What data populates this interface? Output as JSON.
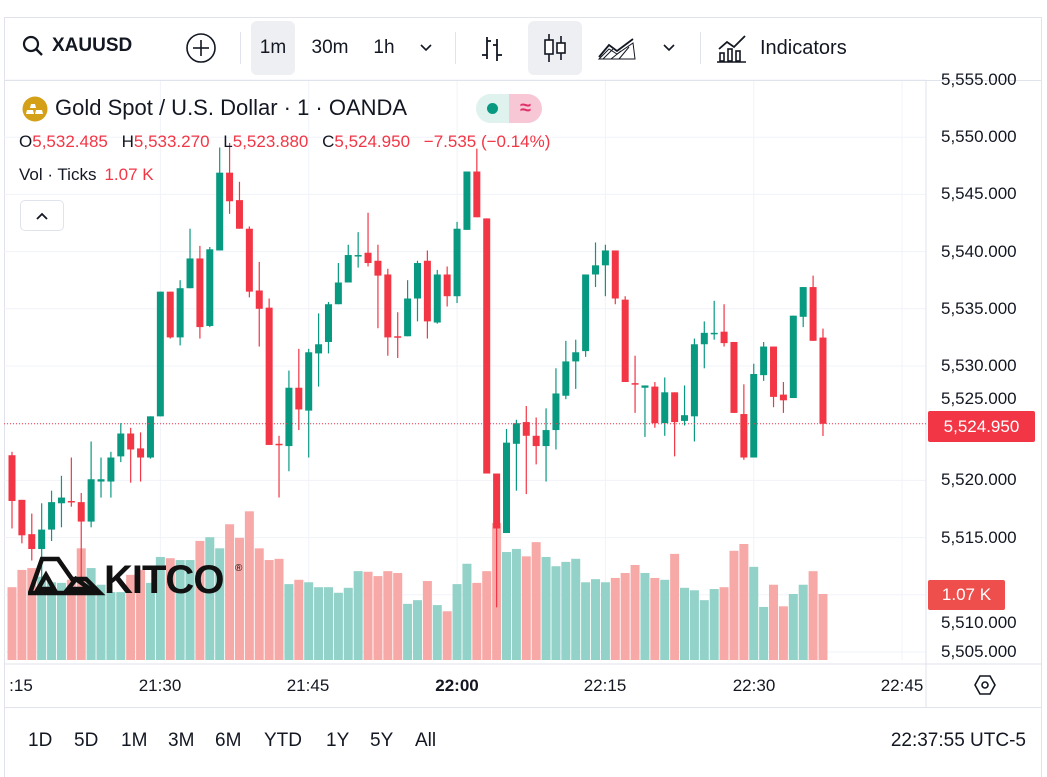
{
  "toolbar": {
    "symbol": "XAUUSD",
    "intervals": [
      "1m",
      "30m",
      "1h"
    ],
    "active_interval": "1m",
    "indicators_label": "Indicators"
  },
  "legend": {
    "title": "Gold Spot / U.S. Dollar · 1 · OANDA",
    "o_label": "O",
    "o": "5,532.485",
    "h_label": "H",
    "h": "5,533.270",
    "l_label": "L",
    "l": "5,523.880",
    "c_label": "C",
    "c": "5,524.950",
    "change": "−7.535 (−0.14%)",
    "vol_label": "Vol · Ticks",
    "vol": "1.07 K",
    "badge_icon": "≈"
  },
  "logo": "KITCO",
  "price_axis": {
    "ticks": [
      "5,555.000",
      "5,550.000",
      "5,545.000",
      "5,540.000",
      "5,535.000",
      "5,530.000",
      "5,525.000",
      "5,520.000",
      "5,515.000",
      "5,510.000",
      "5,505.000"
    ],
    "last_price": "5,524.950",
    "last_volume": "1.07 K"
  },
  "time_axis": {
    "ticks": [
      ":15",
      "21:30",
      "21:45",
      "22:00",
      "22:15",
      "22:30",
      "22:45"
    ]
  },
  "bottom_bar": {
    "ranges": [
      "1D",
      "5D",
      "1M",
      "3M",
      "6M",
      "YTD",
      "1Y",
      "5Y",
      "All"
    ],
    "clock": "22:37:55 UTC-5"
  },
  "colors": {
    "up": "#089981",
    "down": "#f23645",
    "up_volume": "#92d2c8",
    "down_volume": "#f7a9a7",
    "last_price_line": "#f23645",
    "gold_icon": "#d4a017"
  },
  "chart_data": {
    "type": "candlestick",
    "symbol": "XAUUSD",
    "interval": "1m",
    "start_time": "21:15",
    "columns": [
      "open",
      "high",
      "low",
      "close",
      "volume_k"
    ],
    "ylim": [
      5505,
      5555
    ],
    "volume_unit": "K",
    "grid": true,
    "candles": [
      [
        5522.2,
        5522.5,
        5515.8,
        5518.2,
        1.18
      ],
      [
        5518.3,
        5518.3,
        5514.5,
        5515.2,
        1.46
      ],
      [
        5515.3,
        5517.1,
        5513.0,
        5514.0,
        1.49
      ],
      [
        5514.0,
        5518.0,
        5511.3,
        5515.7,
        1.35
      ],
      [
        5515.7,
        5519.1,
        5514.7,
        5518.1,
        1.26
      ],
      [
        5518.0,
        5520.4,
        5515.9,
        5518.5,
        1.25
      ],
      [
        5518.2,
        5522.0,
        5517.7,
        5518.1,
        1.3
      ],
      [
        5518.1,
        5518.9,
        5511.0,
        5516.4,
        1.81
      ],
      [
        5516.4,
        5523.4,
        5515.9,
        5520.1,
        1.49
      ],
      [
        5519.9,
        5522.0,
        5518.5,
        5520.1,
        1.22
      ],
      [
        5519.9,
        5522.5,
        5518.5,
        5522.0,
        1.1
      ],
      [
        5522.1,
        5525.0,
        5521.6,
        5524.1,
        1.1
      ],
      [
        5524.1,
        5524.6,
        5519.8,
        5522.7,
        1.38
      ],
      [
        5522.8,
        5524.2,
        5519.9,
        5522.0,
        1.46
      ],
      [
        5522.0,
        5525.6,
        5521.9,
        5525.6,
        1.25
      ],
      [
        5525.6,
        5536.5,
        5525.6,
        5536.5,
        1.67
      ],
      [
        5536.5,
        5536.5,
        5532.4,
        5532.5,
        1.65
      ],
      [
        5532.5,
        5537.5,
        5531.8,
        5536.8,
        1.62
      ],
      [
        5536.8,
        5542.0,
        5536.8,
        5539.4,
        1.62
      ],
      [
        5539.4,
        5540.5,
        5532.4,
        5533.4,
        1.93
      ],
      [
        5533.5,
        5540.4,
        5533.4,
        5540.2,
        1.99
      ],
      [
        5540.1,
        5549.1,
        5540.1,
        5546.9,
        1.81
      ],
      [
        5546.9,
        5549.5,
        5543.3,
        5544.4,
        2.2
      ],
      [
        5544.5,
        5546.1,
        5542.0,
        5542.0,
        1.98
      ],
      [
        5542.0,
        5542.2,
        5536.0,
        5536.5,
        2.41
      ],
      [
        5536.6,
        5539.1,
        5531.7,
        5535.0,
        1.81
      ],
      [
        5535.1,
        5535.9,
        5523.1,
        5523.1,
        1.62
      ],
      [
        5523.2,
        5523.9,
        5518.5,
        5523.1,
        1.64
      ],
      [
        5523.0,
        5529.6,
        5520.8,
        5528.1,
        1.23
      ],
      [
        5528.1,
        5531.5,
        5524.4,
        5526.2,
        1.3
      ],
      [
        5526.1,
        5531.5,
        5522.0,
        5531.2,
        1.26
      ],
      [
        5531.1,
        5534.6,
        5528.2,
        5531.9,
        1.18
      ],
      [
        5532.1,
        5535.6,
        5531.1,
        5535.4,
        1.18
      ],
      [
        5535.4,
        5539.0,
        5535.4,
        5537.3,
        1.09
      ],
      [
        5537.3,
        5540.6,
        5537.3,
        5539.7,
        1.17
      ],
      [
        5539.6,
        5541.7,
        5538.6,
        5539.7,
        1.44
      ],
      [
        5539.9,
        5543.4,
        5538.7,
        5539.0,
        1.43
      ],
      [
        5539.2,
        5540.6,
        5533.3,
        5537.9,
        1.36
      ],
      [
        5538.0,
        5538.5,
        5530.9,
        5532.5,
        1.44
      ],
      [
        5532.6,
        5534.7,
        5530.7,
        5532.5,
        1.41
      ],
      [
        5532.6,
        5537.5,
        5532.6,
        5535.9,
        0.91
      ],
      [
        5535.9,
        5539.2,
        5533.9,
        5539.0,
        0.97
      ],
      [
        5539.2,
        5540.1,
        5532.4,
        5533.9,
        1.28
      ],
      [
        5533.8,
        5538.4,
        5533.7,
        5538.0,
        0.89
      ],
      [
        5538.0,
        5538.7,
        5535.2,
        5536.1,
        0.79
      ],
      [
        5536.1,
        5542.6,
        5535.5,
        5542.0,
        1.23
      ],
      [
        5541.9,
        5547.0,
        5541.9,
        5547.0,
        1.56
      ],
      [
        5547.0,
        5549.0,
        5543.0,
        5543.0,
        1.25
      ],
      [
        5542.9,
        5542.9,
        5520.6,
        5520.6,
        1.44
      ],
      [
        5520.6,
        5520.6,
        5508.9,
        5515.8,
        2.22
      ],
      [
        5515.4,
        5524.5,
        5515.4,
        5523.3,
        1.75
      ],
      [
        5523.2,
        5525.3,
        5519.1,
        5525.0,
        1.8
      ],
      [
        5525.1,
        5526.5,
        5518.8,
        5523.9,
        1.68
      ],
      [
        5523.9,
        5525.5,
        5521.4,
        5523.0,
        1.91
      ],
      [
        5523.0,
        5526.3,
        5519.9,
        5524.4,
        1.67
      ],
      [
        5524.4,
        5529.8,
        5522.7,
        5527.6,
        1.52
      ],
      [
        5527.4,
        5532.2,
        5527.1,
        5530.4,
        1.59
      ],
      [
        5530.4,
        5532.3,
        5528.0,
        5531.2,
        1.64
      ],
      [
        5531.3,
        5538.0,
        5530.8,
        5538.0,
        1.26
      ],
      [
        5538.0,
        5540.8,
        5536.9,
        5538.8,
        1.31
      ],
      [
        5538.8,
        5540.6,
        5536.1,
        5540.1,
        1.26
      ],
      [
        5540.1,
        5540.1,
        5535.4,
        5535.9,
        1.33
      ],
      [
        5535.8,
        5536.1,
        5528.6,
        5528.6,
        1.41
      ],
      [
        5528.5,
        5530.9,
        5525.9,
        5528.4,
        1.54
      ],
      [
        5528.1,
        5528.3,
        5523.8,
        5528.3,
        1.41
      ],
      [
        5528.2,
        5528.6,
        5524.6,
        5525.0,
        1.33
      ],
      [
        5525.0,
        5529.0,
        5523.9,
        5527.7,
        1.3
      ],
      [
        5527.7,
        5527.7,
        5522.1,
        5525.1,
        1.72
      ],
      [
        5525.2,
        5528.3,
        5524.8,
        5525.7,
        1.17
      ],
      [
        5525.6,
        5532.4,
        5523.4,
        5531.9,
        1.13
      ],
      [
        5531.9,
        5533.9,
        5529.8,
        5532.9,
        0.97
      ],
      [
        5532.8,
        5535.7,
        5532.3,
        5532.9,
        1.15
      ],
      [
        5533.0,
        5535.4,
        5531.7,
        5532.0,
        1.18
      ],
      [
        5532.1,
        5532.1,
        5525.9,
        5525.9,
        1.77
      ],
      [
        5525.8,
        5528.4,
        5521.8,
        5522.0,
        1.88
      ],
      [
        5522.0,
        5530.2,
        5522.0,
        5529.3,
        1.51
      ],
      [
        5529.2,
        5532.1,
        5528.7,
        5531.7,
        0.86
      ],
      [
        5531.7,
        5531.7,
        5526.4,
        5527.3,
        1.22
      ],
      [
        5527.5,
        5528.6,
        5525.9,
        5527.0,
        0.87
      ],
      [
        5527.2,
        5534.4,
        5527.2,
        5534.4,
        1.07
      ],
      [
        5534.3,
        5536.9,
        5533.4,
        5536.9,
        1.22
      ],
      [
        5536.9,
        5537.9,
        5532.2,
        5532.2,
        1.44
      ],
      [
        5532.485,
        5533.27,
        5523.88,
        5524.95,
        1.07
      ]
    ]
  }
}
